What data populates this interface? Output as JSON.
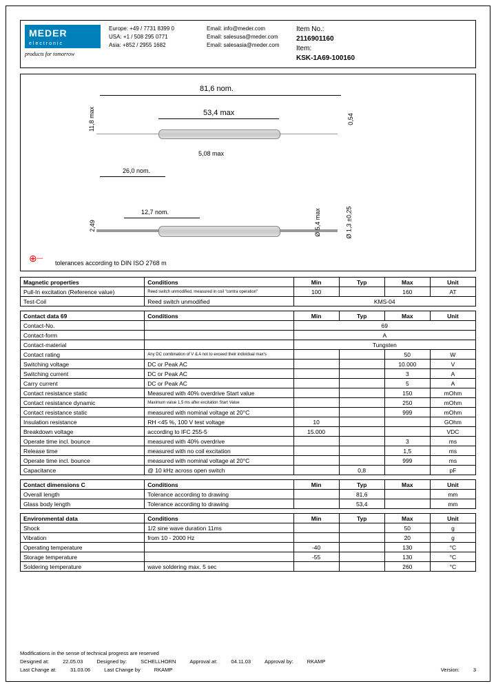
{
  "header": {
    "logo": "MEDER",
    "logo_sub": "electronic",
    "slogan": "products for tomorrow",
    "contacts_left": [
      "Europe: +49 / 7731 8399 0",
      "USA: +1 / 508 295 0771",
      "Asia: +852 / 2955 1682"
    ],
    "contacts_right": [
      "Email: info@meder.com",
      "Email: salesusa@meder.com",
      "Email: salesasia@meder.com"
    ],
    "item_no_label": "Item No.:",
    "item_no": "2116901160",
    "item_label": "Item:",
    "item": "KSK-1A69-100160"
  },
  "drawing": {
    "dims": {
      "overall_len": "81,6 nom.",
      "body_len": "53,4 max",
      "height": "11,8 max",
      "lead_thick": "0,54",
      "flat_len": "5,08 max",
      "lead_len": "26,0 nom.",
      "bottom_len": "12,7 nom.",
      "bottom_h": "2,49",
      "dia1": "Ø 5,4 max",
      "dia2": "Ø 1,3 ±0,25"
    },
    "tolerance_note": "tolerances according to DIN ISO 2768 m"
  },
  "tables": {
    "magnetic": {
      "title": "Magnetic properties",
      "headers": [
        "Conditions",
        "Min",
        "Typ",
        "Max",
        "Unit"
      ],
      "rows": [
        {
          "label": "Pull-In excitation (Reference value)",
          "cond": "Reed switch unmodified, measured in coil \"contra operation\"",
          "min": "100",
          "typ": "",
          "max": "160",
          "unit": "AT"
        },
        {
          "label": "Test-Coil",
          "cond": "Reed switch unmodified",
          "span": "KMS-04"
        }
      ]
    },
    "contact": {
      "title": "Contact data  69",
      "headers": [
        "Conditions",
        "Min",
        "Typ",
        "Max",
        "Unit"
      ],
      "rows": [
        {
          "label": "Contact-No.",
          "span": "69"
        },
        {
          "label": "Contact-form",
          "span": "A"
        },
        {
          "label": "Contact-material",
          "span": "Tungsten"
        },
        {
          "label": "Contact rating",
          "cond": "Any DC combination of V & A not to exceed their individual max's",
          "max": "50",
          "unit": "W"
        },
        {
          "label": "Switching voltage",
          "cond": "DC or Peak AC",
          "max": "10.000",
          "unit": "V"
        },
        {
          "label": "Switching current",
          "cond": "DC or Peak AC",
          "max": "3",
          "unit": "A"
        },
        {
          "label": "Carry current",
          "cond": "DC or Peak AC",
          "max": "5",
          "unit": "A"
        },
        {
          "label": "Contact resistance static",
          "cond": "Measured with 40% overdrive Start value",
          "max": "150",
          "unit": "mOhm"
        },
        {
          "label": "Contact resistance dynamic",
          "cond": "Maximum value 1,5 ms after excitation Start Value",
          "max": "250",
          "unit": "mOhm"
        },
        {
          "label": "Contact resistance static",
          "cond": "measured with nominal voltage at 20°C",
          "max": "999",
          "unit": "mOhm"
        },
        {
          "label": "Insulation resistance",
          "cond": "RH <45 %, 100 V test voltage",
          "min": "10",
          "unit": "GOhm"
        },
        {
          "label": "Breakdown voltage",
          "cond": "according to IFC 255-5",
          "min": "15.000",
          "unit": "VDC"
        },
        {
          "label": "Operate time incl. bounce",
          "cond": "measured with 40% overdrive",
          "max": "3",
          "unit": "ms"
        },
        {
          "label": "Release time",
          "cond": "measured with no coil excitation",
          "max": "1,5",
          "unit": "ms"
        },
        {
          "label": "Operate time incl. bounce",
          "cond": "measured with nominal voltage at 20°C",
          "max": "999",
          "unit": "ms"
        },
        {
          "label": "Capacitance",
          "cond": "@ 10 kHz across open switch",
          "typ": "0,8",
          "unit": "pF"
        }
      ]
    },
    "dimensions": {
      "title": "Contact dimensions         C",
      "headers": [
        "Conditions",
        "Min",
        "Typ",
        "Max",
        "Unit"
      ],
      "rows": [
        {
          "label": "Overall length",
          "cond": "Tolerance according to drawing",
          "typ": "81,6",
          "unit": "mm"
        },
        {
          "label": "Glass body length",
          "cond": "Tolerance according to drawing",
          "typ": "53,4",
          "unit": "mm"
        }
      ]
    },
    "env": {
      "title": "Environmental data",
      "headers": [
        "Conditions",
        "Min",
        "Typ",
        "Max",
        "Unit"
      ],
      "rows": [
        {
          "label": "Shock",
          "cond": "1/2 sine wave duration 11ms",
          "max": "50",
          "unit": "g"
        },
        {
          "label": "Vibration",
          "cond": "from 10 - 2000 Hz",
          "max": "20",
          "unit": "g"
        },
        {
          "label": "Operating temperature",
          "cond": "",
          "min": "-40",
          "max": "130",
          "unit": "°C"
        },
        {
          "label": "Storage temperature",
          "cond": "",
          "min": "-55",
          "max": "130",
          "unit": "°C"
        },
        {
          "label": "Soldering temperature",
          "cond": "wave soldering max. 5 sec",
          "max": "260",
          "unit": "°C"
        }
      ]
    }
  },
  "footer": {
    "note": "Modifications in the sense of technical progress are reserved",
    "designed_at_label": "Designed at:",
    "designed_at": "22.05.03",
    "designed_by_label": "Designed by:",
    "designed_by": "SCHELLHORN",
    "approval_at_label": "Approval at:",
    "approval_at": "04.11.03",
    "approval_by_label": "Approval by:",
    "approval_by": "RKAMP",
    "last_change_at_label": "Last Change at:",
    "last_change_at": "31.03.06",
    "last_change_by_label": "Last Change by",
    "last_change_by": "RKAMP",
    "version_label": "Version:",
    "version": "3"
  }
}
